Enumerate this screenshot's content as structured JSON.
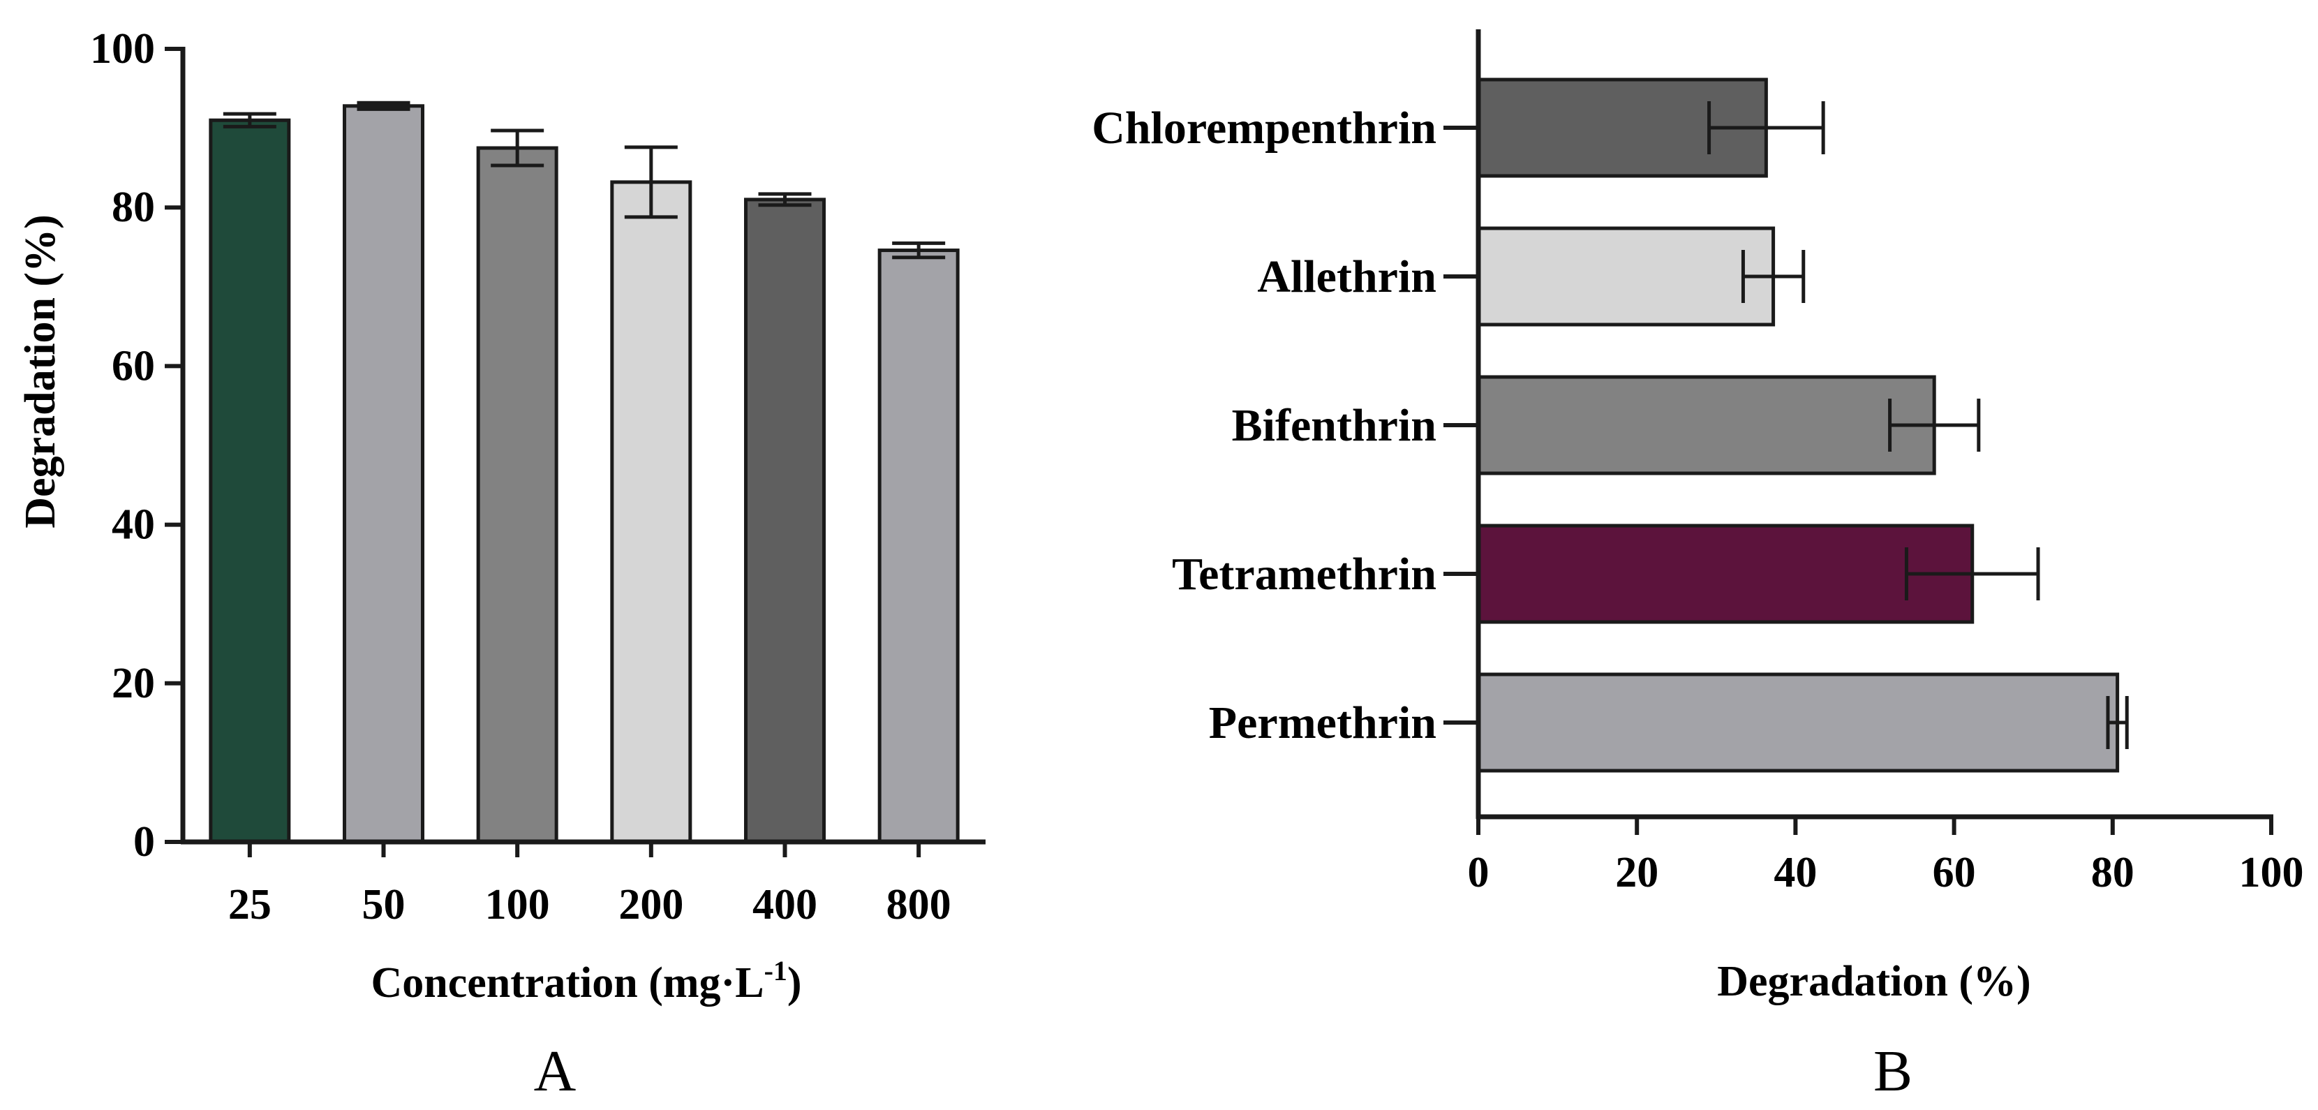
{
  "chart_data": [
    {
      "type": "bar",
      "orientation": "vertical",
      "panel_label": "A",
      "title": "",
      "xlabel_main": "Concentration (mg·L",
      "xlabel_sup": "-1",
      "xlabel_end": ")",
      "ylabel": "Degradation (%)",
      "ylim": [
        0,
        100
      ],
      "yticks": [
        "0",
        "20",
        "40",
        "60",
        "80",
        "100"
      ],
      "categories": [
        "25",
        "50",
        "100",
        "200",
        "400",
        "800"
      ],
      "values": [
        91,
        92.8,
        87.5,
        83.2,
        81,
        74.6
      ],
      "errors": [
        0.8,
        0.4,
        2.2,
        4.4,
        0.7,
        0.9
      ],
      "colors": [
        "#1f4a3a",
        "#a3a3a8",
        "#828282",
        "#d6d6d6",
        "#5f5f5f",
        "#a3a3a8"
      ]
    },
    {
      "type": "bar",
      "orientation": "horizontal",
      "panel_label": "B",
      "title": "",
      "xlabel": "Degradation (%)",
      "xlim": [
        0,
        100
      ],
      "xticks": [
        "0",
        "20",
        "40",
        "60",
        "80",
        "100"
      ],
      "categories": [
        "Chlorempenthrin",
        "Allethrin",
        "Bifenthrin",
        "Tetramethrin",
        "Permethrin"
      ],
      "values": [
        36.3,
        37.2,
        57.5,
        62.3,
        80.6
      ],
      "errors": [
        7.2,
        3.8,
        5.6,
        8.3,
        1.2
      ],
      "colors": [
        "#5f5f5f",
        "#d6d6d6",
        "#828282",
        "#5c133c",
        "#a3a3a8"
      ]
    }
  ]
}
